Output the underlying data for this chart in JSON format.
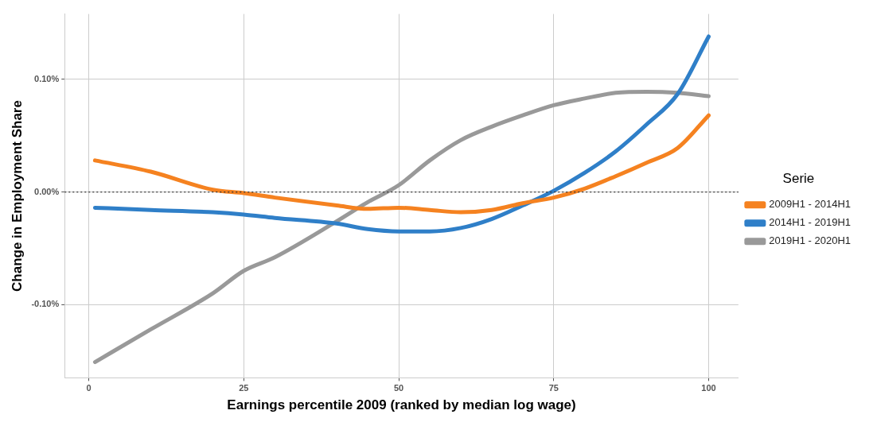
{
  "chart_data": {
    "type": "line",
    "xlabel": "Earnings percentile 2009 (ranked by median log wage)",
    "ylabel": "Change in Employment Share",
    "legend_title": "Serie",
    "legend": "right",
    "grid": true,
    "line_style": "solid",
    "marker": "none",
    "xlim": [
      -3.9,
      104.8
    ],
    "xticks": [
      0,
      25,
      50,
      75,
      100
    ],
    "ylim": [
      -0.165,
      0.158
    ],
    "yticks": [
      {
        "value": -0.1,
        "label": "-0.10%"
      },
      {
        "value": 0,
        "label": "0.00%"
      },
      {
        "value": 0.1,
        "label": "0.10%"
      }
    ],
    "ref_lines": [
      {
        "axis": "y",
        "value": 0,
        "color": "#333333",
        "line_style": "dotted"
      }
    ],
    "x": [
      1,
      10,
      20,
      25,
      30,
      40,
      45,
      50,
      55,
      60,
      65,
      70,
      75,
      80,
      85,
      90,
      95,
      100
    ],
    "series": [
      {
        "name": "2009H1 - 2014H1",
        "color": "#f58220",
        "values": [
          0.028,
          0.018,
          0.002,
          -0.001,
          -0.005,
          -0.012,
          -0.015,
          -0.014,
          -0.016,
          -0.018,
          -0.016,
          -0.01,
          -0.005,
          0.003,
          0.014,
          0.026,
          0.039,
          0.068
        ]
      },
      {
        "name": "2014H1 - 2019H1",
        "color": "#2f7fc8",
        "values": [
          -0.014,
          -0.016,
          -0.018,
          -0.02,
          -0.023,
          -0.028,
          -0.033,
          -0.035,
          -0.035,
          -0.032,
          -0.024,
          -0.012,
          0.001,
          0.017,
          0.036,
          0.06,
          0.087,
          0.138
        ]
      },
      {
        "name": "2019H1 - 2020H1",
        "color": "#999999",
        "values": [
          -0.151,
          -0.122,
          -0.09,
          -0.07,
          -0.058,
          -0.026,
          -0.009,
          0.006,
          0.028,
          0.046,
          0.058,
          0.068,
          0.077,
          0.083,
          0.088,
          0.089,
          0.088,
          0.085
        ]
      }
    ]
  }
}
